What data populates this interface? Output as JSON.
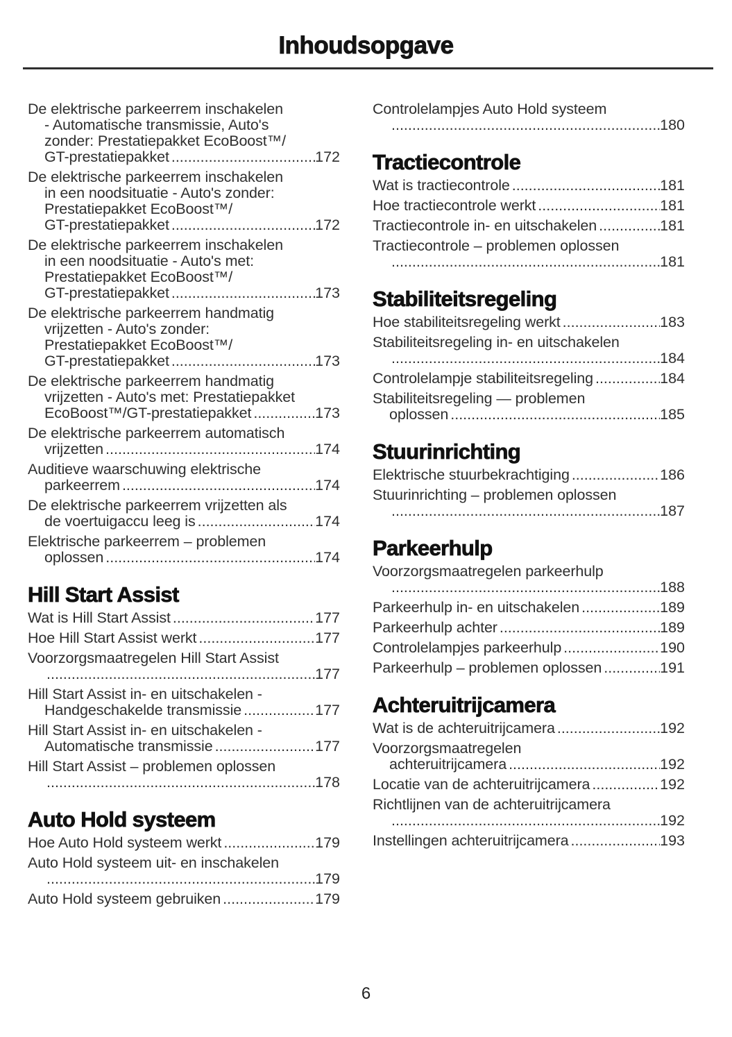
{
  "header": {
    "title": "Inhoudsopgave"
  },
  "footer": {
    "page_number": "6"
  },
  "columns": [
    {
      "blocks": [
        {
          "type": "entry",
          "lines": [
            "De elektrische parkeerrem inschakelen",
            "- Automatische transmissie, Auto's",
            "zonder: Prestatiepakket EcoBoost™/",
            "GT-prestatiepakket"
          ],
          "page": "172"
        },
        {
          "type": "entry",
          "lines": [
            "De elektrische parkeerrem inschakelen",
            "in een noodsituatie - Auto's zonder:",
            "Prestatiepakket EcoBoost™/",
            "GT-prestatiepakket"
          ],
          "page": "172"
        },
        {
          "type": "entry",
          "lines": [
            "De elektrische parkeerrem inschakelen",
            "in een noodsituatie - Auto's met:",
            "Prestatiepakket EcoBoost™/",
            "GT-prestatiepakket"
          ],
          "page": "173"
        },
        {
          "type": "entry",
          "lines": [
            "De elektrische parkeerrem handmatig",
            "vrijzetten - Auto's zonder:",
            "Prestatiepakket EcoBoost™/",
            "GT-prestatiepakket"
          ],
          "page": "173"
        },
        {
          "type": "entry",
          "lines": [
            "De elektrische parkeerrem handmatig",
            "vrijzetten - Auto's met: Prestatiepakket",
            "EcoBoost™/GT-prestatiepakket"
          ],
          "page": "173"
        },
        {
          "type": "entry",
          "lines": [
            "De elektrische parkeerrem automatisch",
            "vrijzetten"
          ],
          "page": "174"
        },
        {
          "type": "entry",
          "lines": [
            "Auditieve waarschuwing elektrische",
            "parkeerrem"
          ],
          "page": "174"
        },
        {
          "type": "entry",
          "lines": [
            "De elektrische parkeerrem vrijzetten als",
            "de voertuigaccu leeg is"
          ],
          "page": "174"
        },
        {
          "type": "entry",
          "lines": [
            "Elektrische parkeerrem – problemen",
            "oplossen"
          ],
          "page": "174"
        },
        {
          "type": "heading",
          "text": "Hill Start Assist"
        },
        {
          "type": "entry",
          "lines": [
            "Wat is Hill Start Assist"
          ],
          "page": "177"
        },
        {
          "type": "entry",
          "lines": [
            "Hoe Hill Start Assist werkt"
          ],
          "page": "177"
        },
        {
          "type": "entry",
          "lines": [
            "Voorzorgsmaatregelen Hill Start Assist",
            ""
          ],
          "page": "177"
        },
        {
          "type": "entry",
          "lines": [
            "Hill Start Assist in- en uitschakelen -",
            "Handgeschakelde transmissie"
          ],
          "page": "177"
        },
        {
          "type": "entry",
          "lines": [
            "Hill Start Assist in- en uitschakelen -",
            "Automatische transmissie"
          ],
          "page": "177"
        },
        {
          "type": "entry",
          "lines": [
            "Hill Start Assist – problemen oplossen",
            ""
          ],
          "page": "178"
        },
        {
          "type": "heading",
          "text": "Auto Hold systeem"
        },
        {
          "type": "entry",
          "lines": [
            "Hoe Auto Hold systeem werkt"
          ],
          "page": "179"
        },
        {
          "type": "entry",
          "lines": [
            "Auto Hold systeem uit- en inschakelen",
            ""
          ],
          "page": "179"
        },
        {
          "type": "entry",
          "lines": [
            "Auto Hold systeem gebruiken"
          ],
          "page": "179"
        }
      ]
    },
    {
      "blocks": [
        {
          "type": "entry",
          "lines": [
            "Controlelampjes Auto Hold systeem",
            ""
          ],
          "page": "180"
        },
        {
          "type": "heading",
          "text": "Tractiecontrole"
        },
        {
          "type": "entry",
          "lines": [
            "Wat is tractiecontrole"
          ],
          "page": "181"
        },
        {
          "type": "entry",
          "lines": [
            "Hoe tractiecontrole werkt"
          ],
          "page": "181"
        },
        {
          "type": "entry",
          "lines": [
            "Tractiecontrole in- en uitschakelen"
          ],
          "page": "181"
        },
        {
          "type": "entry",
          "lines": [
            "Tractiecontrole – problemen oplossen",
            ""
          ],
          "page": "181"
        },
        {
          "type": "heading",
          "text": "Stabiliteitsregeling"
        },
        {
          "type": "entry",
          "lines": [
            "Hoe stabiliteitsregeling werkt"
          ],
          "page": "183"
        },
        {
          "type": "entry",
          "lines": [
            "Stabiliteitsregeling in- en uitschakelen",
            ""
          ],
          "page": "184"
        },
        {
          "type": "entry",
          "lines": [
            "Controlelampje stabiliteitsregeling"
          ],
          "page": "184"
        },
        {
          "type": "entry",
          "lines": [
            "Stabiliteitsregeling — problemen",
            "oplossen"
          ],
          "page": "185"
        },
        {
          "type": "heading",
          "text": "Stuurinrichting"
        },
        {
          "type": "entry",
          "lines": [
            "Elektrische stuurbekrachtiging"
          ],
          "page": "186"
        },
        {
          "type": "entry",
          "lines": [
            "Stuurinrichting – problemen oplossen",
            ""
          ],
          "page": "187"
        },
        {
          "type": "heading",
          "text": "Parkeerhulp"
        },
        {
          "type": "entry",
          "lines": [
            "Voorzorgsmaatregelen parkeerhulp",
            ""
          ],
          "page": "188"
        },
        {
          "type": "entry",
          "lines": [
            "Parkeerhulp in- en uitschakelen"
          ],
          "page": "189"
        },
        {
          "type": "entry",
          "lines": [
            "Parkeerhulp achter"
          ],
          "page": "189"
        },
        {
          "type": "entry",
          "lines": [
            "Controlelampjes parkeerhulp"
          ],
          "page": "190"
        },
        {
          "type": "entry",
          "lines": [
            "Parkeerhulp – problemen oplossen"
          ],
          "page": "191"
        },
        {
          "type": "heading",
          "text": "Achteruitrijcamera"
        },
        {
          "type": "entry",
          "lines": [
            "Wat is de achteruitrijcamera"
          ],
          "page": "192"
        },
        {
          "type": "entry",
          "lines": [
            "Voorzorgsmaatregelen",
            "achteruitrijcamera"
          ],
          "page": "192"
        },
        {
          "type": "entry",
          "lines": [
            "Locatie van de achteruitrijcamera"
          ],
          "page": "192"
        },
        {
          "type": "entry",
          "lines": [
            "Richtlijnen van de achteruitrijcamera",
            ""
          ],
          "page": "192"
        },
        {
          "type": "entry",
          "lines": [
            "Instellingen achteruitrijcamera"
          ],
          "page": "193"
        }
      ]
    }
  ]
}
